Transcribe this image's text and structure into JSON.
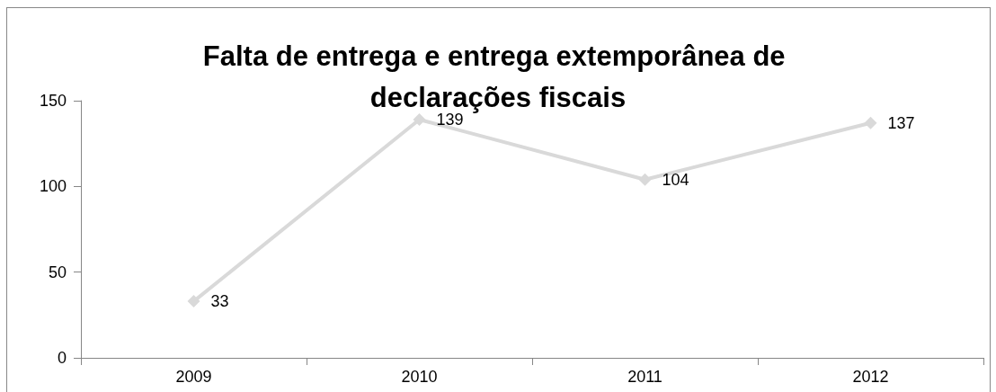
{
  "chart_data": {
    "type": "line",
    "title": "Falta de entrega e entrega extemporânea de declarações fiscais",
    "categories": [
      "2009",
      "2010",
      "2011",
      "2012"
    ],
    "series": [
      {
        "color": "#d9d9d9",
        "values": [
          33,
          139,
          104,
          137
        ]
      }
    ],
    "ylim": [
      0,
      150
    ],
    "yticks": [
      0,
      50,
      100,
      150
    ],
    "grid": false,
    "marker": "diamond",
    "line_style": "solid",
    "data_labels": true
  }
}
